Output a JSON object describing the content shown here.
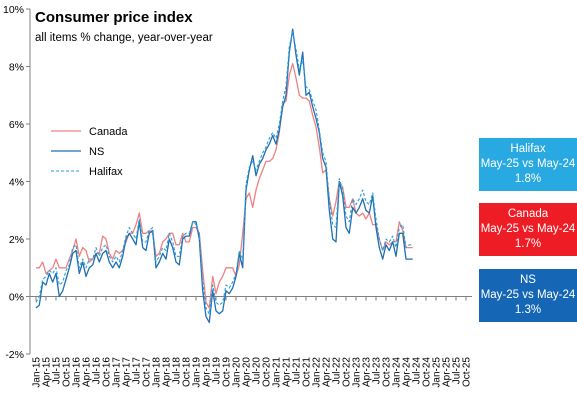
{
  "chart_data": {
    "type": "line",
    "title": "Consumer price index",
    "subtitle": "all items % change, year-over-year",
    "xlabel": "",
    "ylabel": "",
    "ylim": [
      -2,
      10
    ],
    "yticks": [
      -2,
      0,
      2,
      4,
      6,
      8,
      10
    ],
    "ytick_labels": [
      "-2%",
      "0%",
      "2%",
      "4%",
      "6%",
      "8%",
      "10%"
    ],
    "xtick_labels": [
      "Jan-15",
      "Apr-15",
      "Jul-15",
      "Oct-15",
      "Jan-16",
      "Apr-16",
      "Jul-16",
      "Oct-16",
      "Jan-17",
      "Apr-17",
      "Jul-17",
      "Oct-17",
      "Jan-18",
      "Apr-18",
      "Jul-18",
      "Oct-18",
      "Jan-19",
      "Apr-19",
      "Jul-19",
      "Oct-19",
      "Jan-20",
      "Apr-20",
      "Jul-20",
      "Oct-20",
      "Jan-21",
      "Apr-21",
      "Jul-21",
      "Oct-21",
      "Jan-22",
      "Apr-22",
      "Jul-22",
      "Oct-22",
      "Jan-23",
      "Apr-23",
      "Jul-23",
      "Oct-23",
      "Jan-24",
      "Apr-24",
      "Jul-24",
      "Oct-24",
      "Jan-25",
      "Apr-25",
      "Jul-25",
      "Oct-25"
    ],
    "grid": false,
    "legend_position": "left",
    "series": [
      {
        "name": "Canada",
        "color": "#f08080",
        "style": "solid",
        "values": [
          1.0,
          1.0,
          1.2,
          0.8,
          0.9,
          1.0,
          1.3,
          1.0,
          1.0,
          1.0,
          1.3,
          1.6,
          2.0,
          1.4,
          1.7,
          1.6,
          1.2,
          1.3,
          1.5,
          1.5,
          2.1,
          2.0,
          1.5,
          1.3,
          1.6,
          1.5,
          1.6,
          1.9,
          2.2,
          2.2,
          2.5,
          2.9,
          2.2,
          2.2,
          2.3,
          2.2,
          1.4,
          1.5,
          1.9,
          2.0,
          2.2,
          2.2,
          1.8,
          1.8,
          2.2,
          1.9,
          1.9,
          2.4,
          2.4,
          2.2,
          0.9,
          -0.2,
          -0.4,
          0.7,
          0.1,
          0.5,
          0.7,
          1.0,
          1.0,
          1.0,
          0.7,
          1.1,
          2.2,
          3.4,
          3.6,
          3.1,
          3.7,
          4.1,
          4.4,
          4.7,
          4.7,
          4.8,
          5.1,
          5.7,
          6.7,
          6.8,
          7.7,
          8.1,
          7.6,
          7.0,
          6.9,
          6.9,
          6.8,
          6.3,
          5.9,
          5.2,
          4.3,
          4.4,
          3.4,
          2.8,
          3.3,
          4.0,
          3.8,
          3.1,
          3.1,
          3.4,
          2.9,
          2.8,
          2.9,
          2.7,
          2.9,
          2.5,
          2.5,
          2.0,
          1.6,
          1.9,
          1.8,
          1.9,
          1.9,
          2.6,
          2.3,
          1.7,
          1.7,
          1.7
        ]
      },
      {
        "name": "NS",
        "color": "#1f6fb2",
        "style": "solid",
        "values": [
          -0.4,
          -0.3,
          0.5,
          0.4,
          0.8,
          0.5,
          0.8,
          0.0,
          0.2,
          0.6,
          1.0,
          1.5,
          1.6,
          0.8,
          1.2,
          0.7,
          1.0,
          1.1,
          1.5,
          1.2,
          1.5,
          1.6,
          1.2,
          1.0,
          1.2,
          1.0,
          1.4,
          2.0,
          2.2,
          2.0,
          1.8,
          2.6,
          1.7,
          1.6,
          2.2,
          2.3,
          1.0,
          1.2,
          1.5,
          1.3,
          2.0,
          1.7,
          1.2,
          1.1,
          2.0,
          2.1,
          2.1,
          2.6,
          2.6,
          2.0,
          0.2,
          -0.7,
          -0.9,
          0.2,
          -0.5,
          -0.6,
          -0.5,
          0.2,
          0.1,
          0.3,
          0.7,
          1.5,
          1.0,
          3.7,
          4.4,
          4.9,
          4.2,
          4.6,
          4.8,
          5.1,
          5.3,
          5.6,
          5.3,
          5.8,
          6.6,
          7.0,
          8.5,
          9.3,
          8.4,
          7.7,
          8.5,
          7.0,
          7.1,
          6.6,
          6.2,
          5.7,
          4.8,
          4.5,
          3.0,
          2.0,
          1.9,
          4.0,
          3.5,
          2.4,
          2.2,
          3.1,
          2.9,
          3.1,
          3.4,
          3.0,
          2.9,
          3.5,
          2.4,
          1.7,
          1.3,
          1.8,
          1.6,
          1.9,
          1.4,
          2.2,
          2.2,
          1.3,
          1.3,
          1.3
        ]
      },
      {
        "name": "Halifax",
        "color": "#2a9fd6",
        "style": "dashed",
        "values": [
          -0.2,
          0.0,
          0.6,
          0.7,
          0.9,
          0.8,
          1.0,
          0.4,
          0.5,
          0.9,
          1.1,
          1.7,
          1.8,
          1.0,
          1.3,
          1.0,
          1.3,
          1.3,
          1.7,
          1.4,
          1.7,
          1.8,
          1.4,
          1.2,
          1.4,
          1.2,
          1.6,
          2.1,
          2.4,
          2.2,
          2.0,
          2.7,
          1.9,
          1.9,
          2.3,
          2.4,
          1.2,
          1.4,
          1.7,
          1.6,
          2.2,
          1.9,
          1.4,
          1.4,
          2.1,
          2.2,
          2.2,
          2.6,
          2.5,
          2.2,
          0.5,
          -0.4,
          -0.6,
          0.4,
          -0.2,
          -0.3,
          -0.2,
          0.4,
          0.3,
          0.5,
          0.8,
          1.6,
          1.3,
          3.9,
          4.5,
          4.7,
          4.4,
          4.7,
          5.0,
          5.2,
          5.5,
          5.7,
          5.5,
          6.0,
          6.8,
          7.3,
          8.7,
          9.2,
          8.6,
          7.9,
          8.2,
          7.3,
          7.2,
          6.8,
          6.5,
          5.8,
          5.0,
          4.7,
          3.4,
          2.5,
          2.4,
          4.1,
          3.7,
          2.8,
          2.6,
          3.4,
          3.2,
          3.4,
          3.7,
          3.3,
          3.2,
          3.6,
          2.7,
          2.0,
          1.6,
          2.0,
          1.9,
          2.1,
          1.7,
          2.4,
          2.5,
          1.7,
          1.8,
          1.8
        ]
      }
    ]
  },
  "callouts": [
    {
      "city": "Halifax",
      "period": "May-25 vs May-24",
      "value": "1.8%",
      "color": "#29a9e1"
    },
    {
      "city": "Canada",
      "period": "May-25 vs May-24",
      "value": "1.7%",
      "color": "#ee1c25"
    },
    {
      "city": "NS",
      "period": "May-25 vs May-24",
      "value": "1.3%",
      "color": "#1567b5"
    }
  ]
}
